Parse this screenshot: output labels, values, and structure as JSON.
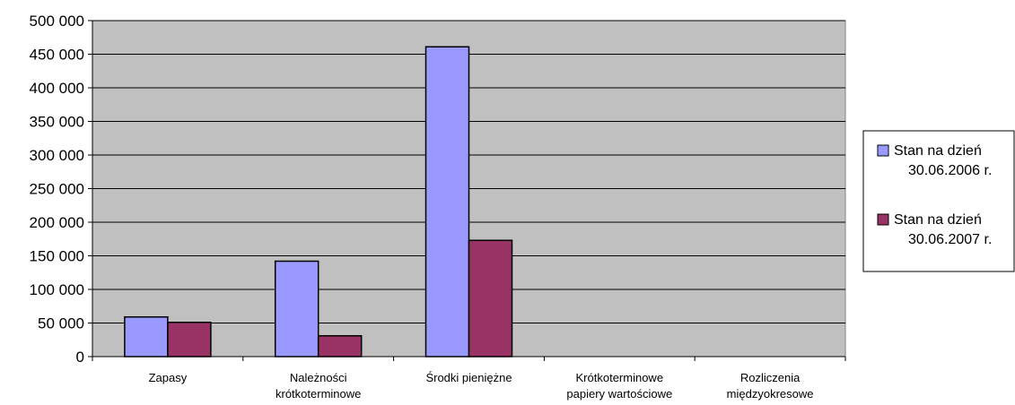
{
  "chart_data": {
    "type": "bar",
    "title": "",
    "xlabel": "",
    "ylabel": "",
    "ylim": [
      0,
      500000
    ],
    "y_ticks": [
      "0",
      "50 000",
      "100 000",
      "150 000",
      "200 000",
      "250 000",
      "300 000",
      "350 000",
      "400 000",
      "450 000",
      "500 000"
    ],
    "categories": [
      [
        "Zapasy"
      ],
      [
        "Należności",
        "krótkoterminowe"
      ],
      [
        "Środki pieniężne"
      ],
      [
        "Krótkoterminowe",
        "papiery wartościowe"
      ],
      [
        "Rozliczenia",
        "międzyokresowe"
      ]
    ],
    "series": [
      {
        "name_lines": [
          "Stan na dzień",
          "30.06.2006 r."
        ],
        "color": "#9999ff",
        "values": [
          59000,
          142000,
          461000,
          0,
          0
        ]
      },
      {
        "name_lines": [
          "Stan na dzień",
          "30.06.2007 r."
        ],
        "color": "#993366",
        "values": [
          51000,
          31000,
          173000,
          0,
          0
        ]
      }
    ],
    "grid": true,
    "plot_background": "#c0c0c0",
    "legend_position": "right"
  }
}
